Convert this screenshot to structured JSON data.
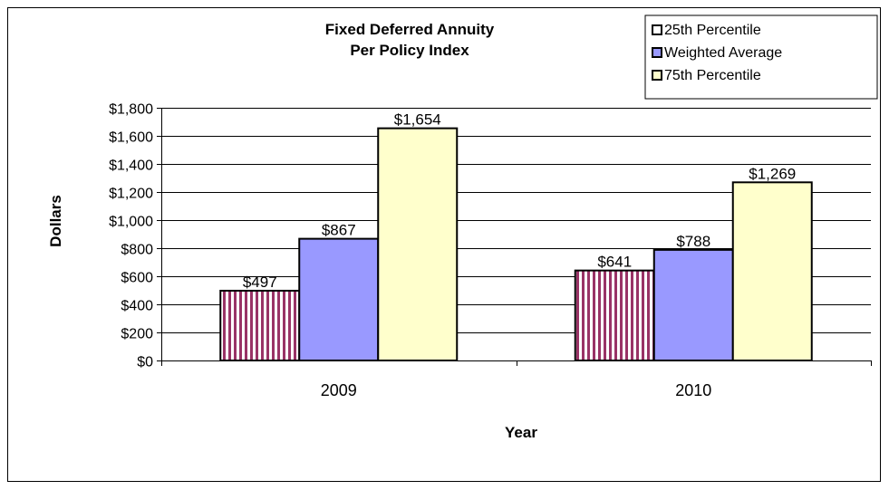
{
  "chart_data": {
    "type": "bar",
    "title": [
      "Fixed Deferred Annuity",
      "Per Policy Index"
    ],
    "xlabel": "Year",
    "ylabel": "Dollars",
    "categories": [
      "2009",
      "2010"
    ],
    "ylim": [
      0,
      1800
    ],
    "yticks": [
      0,
      200,
      400,
      600,
      800,
      1000,
      1200,
      1400,
      1600,
      1800
    ],
    "ytick_labels": [
      "$0",
      "$200",
      "$400",
      "$600",
      "$800",
      "$1,000",
      "$1,200",
      "$1,400",
      "$1,600",
      "$1,800"
    ],
    "grid": true,
    "legend_position": "top-right",
    "series": [
      {
        "name": "25th Percentile",
        "values": [
          497,
          641
        ],
        "labels": [
          "$497",
          "$641"
        ],
        "color": "#993366",
        "pattern": "vertical-stripes"
      },
      {
        "name": "Weighted Average",
        "values": [
          867,
          788
        ],
        "labels": [
          "$867",
          "$788"
        ],
        "color": "#9999FF",
        "pattern": "solid"
      },
      {
        "name": "75th Percentile",
        "values": [
          1654,
          1269
        ],
        "labels": [
          "$1,654",
          "$1,269"
        ],
        "color": "#FFFFCC",
        "pattern": "solid"
      }
    ]
  }
}
